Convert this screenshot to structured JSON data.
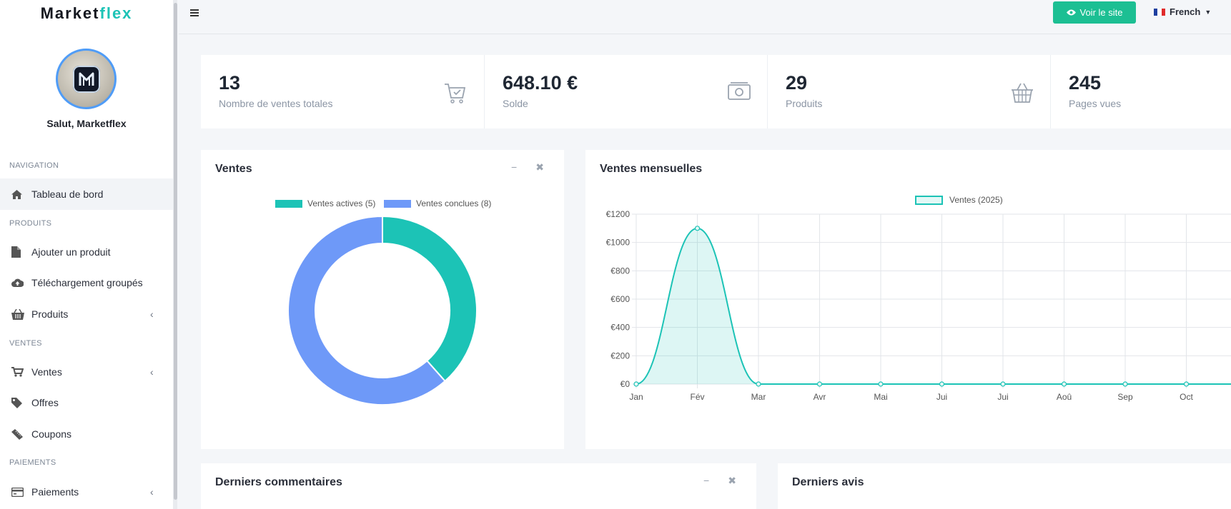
{
  "brand": {
    "name_main": "Market",
    "name_accent": "flex"
  },
  "user": {
    "greeting": "Salut, Marketflex"
  },
  "sidebar": {
    "sections": [
      {
        "label": "NAVIGATION"
      },
      {
        "label": "PRODUITS"
      },
      {
        "label": "VENTES"
      },
      {
        "label": "PAIEMENTS"
      }
    ],
    "items": [
      {
        "label": "Tableau de bord",
        "icon": "home-icon"
      },
      {
        "label": "Ajouter un produit",
        "icon": "file-icon"
      },
      {
        "label": "Téléchargement groupés",
        "icon": "cloud-upload-icon"
      },
      {
        "label": "Produits",
        "icon": "basket-icon"
      },
      {
        "label": "Ventes",
        "icon": "cart-icon"
      },
      {
        "label": "Offres",
        "icon": "tag-icon"
      },
      {
        "label": "Coupons",
        "icon": "ticket-icon"
      },
      {
        "label": "Paiements",
        "icon": "credit-card-icon"
      }
    ]
  },
  "topbar": {
    "view_site_label": "Voir le site",
    "language": "French"
  },
  "stats": [
    {
      "value": "13",
      "label": "Nombre de ventes totales",
      "icon": "cart-icon"
    },
    {
      "value": "648.10 €",
      "label": "Solde",
      "icon": "cash-icon"
    },
    {
      "value": "29",
      "label": "Produits",
      "icon": "basket-icon"
    },
    {
      "value": "245",
      "label": "Pages vues",
      "icon": "eye-icon"
    }
  ],
  "panels": {
    "sales_title": "Ventes",
    "monthly_title": "Ventes mensuelles",
    "comments_title": "Derniers commentaires",
    "reviews_title": "Derniers avis"
  },
  "colors": {
    "accent": "#1cc3b6",
    "button": "#1cbf93",
    "blue": "#6e99f8"
  },
  "chart_data": [
    {
      "type": "pie",
      "title": "Ventes",
      "categories": [
        "Ventes actives (5)",
        "Ventes conclues (8)"
      ],
      "values": [
        5,
        8
      ],
      "colors": [
        "#1cc3b6",
        "#6e99f8"
      ],
      "legend": "top"
    },
    {
      "type": "area",
      "title": "Ventes mensuelles",
      "categories": [
        "Jan",
        "Fév",
        "Mar",
        "Avr",
        "Mai",
        "Jui",
        "Jui",
        "Aoû",
        "Sep",
        "Oct"
      ],
      "series": [
        {
          "name": "Ventes (2025)",
          "values": [
            0,
            1100,
            0,
            0,
            0,
            0,
            0,
            0,
            0,
            0
          ]
        }
      ],
      "y_ticks": [
        "€0",
        "€200",
        "€400",
        "€600",
        "€800",
        "€1000",
        "€1200"
      ],
      "ylim": [
        0,
        1200
      ],
      "grid": true,
      "legend": "top"
    }
  ]
}
